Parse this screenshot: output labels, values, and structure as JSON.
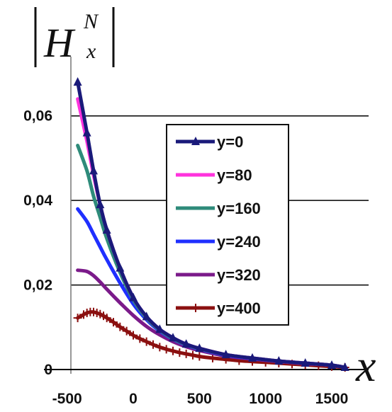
{
  "chart_data": {
    "type": "line",
    "title_main": "H",
    "title_sup": "N",
    "title_sub": "x",
    "xlabel": "x",
    "ylabel": "",
    "xlim": [
      -500,
      1650
    ],
    "ylim": [
      0,
      0.07
    ],
    "x_ticks": [
      "-500",
      "0",
      "500",
      "1000",
      "1500"
    ],
    "y_ticks": [
      "0",
      "0,02",
      "0,04",
      "0,06"
    ],
    "grid": "horizontal",
    "legend_position": "center-right",
    "series": [
      {
        "name": "y=0",
        "color": "#1a1a7a",
        "marker": "triangle",
        "x": [
          -420,
          -350,
          -300,
          -250,
          -200,
          -100,
          0,
          100,
          200,
          300,
          400,
          500,
          700,
          900,
          1100,
          1300,
          1500,
          1600
        ],
        "values": [
          0.068,
          0.056,
          0.047,
          0.039,
          0.033,
          0.024,
          0.017,
          0.0125,
          0.0095,
          0.0075,
          0.006,
          0.005,
          0.0035,
          0.0027,
          0.002,
          0.0015,
          0.001,
          0.0005
        ]
      },
      {
        "name": "y=80",
        "color": "#ff33dd",
        "marker": "none",
        "x": [
          -420,
          -350,
          -300,
          -250,
          -200,
          -100,
          0,
          100,
          200,
          300,
          400,
          500,
          700,
          900,
          1100,
          1300,
          1500,
          1600
        ],
        "values": [
          0.064,
          0.054,
          0.046,
          0.039,
          0.033,
          0.024,
          0.017,
          0.0125,
          0.0095,
          0.0075,
          0.006,
          0.005,
          0.0035,
          0.0027,
          0.002,
          0.0015,
          0.001,
          0.0005
        ]
      },
      {
        "name": "y=160",
        "color": "#2e8b7a",
        "marker": "none",
        "x": [
          -420,
          -350,
          -300,
          -250,
          -200,
          -100,
          0,
          100,
          200,
          300,
          400,
          500,
          700,
          900,
          1100,
          1300,
          1500,
          1600
        ],
        "values": [
          0.053,
          0.047,
          0.041,
          0.036,
          0.031,
          0.023,
          0.0165,
          0.0122,
          0.0093,
          0.0073,
          0.0059,
          0.0049,
          0.0035,
          0.0027,
          0.002,
          0.0015,
          0.001,
          0.0005
        ]
      },
      {
        "name": "y=240",
        "color": "#1f2fff",
        "marker": "none",
        "x": [
          -420,
          -350,
          -300,
          -250,
          -200,
          -100,
          0,
          100,
          200,
          300,
          400,
          500,
          700,
          900,
          1100,
          1300,
          1500,
          1600
        ],
        "values": [
          0.038,
          0.035,
          0.032,
          0.029,
          0.026,
          0.0205,
          0.0155,
          0.0118,
          0.0091,
          0.0072,
          0.0058,
          0.0048,
          0.0034,
          0.0026,
          0.002,
          0.0015,
          0.001,
          0.0005
        ]
      },
      {
        "name": "y=320",
        "color": "#7b1a8a",
        "marker": "none",
        "x": [
          -420,
          -350,
          -300,
          -250,
          -200,
          -100,
          0,
          100,
          200,
          300,
          400,
          500,
          700,
          900,
          1100,
          1300,
          1500,
          1600
        ],
        "values": [
          0.0235,
          0.0232,
          0.0222,
          0.0207,
          0.019,
          0.0158,
          0.0128,
          0.0102,
          0.0082,
          0.0066,
          0.0054,
          0.0045,
          0.0032,
          0.0025,
          0.0019,
          0.0014,
          0.001,
          0.0005
        ]
      },
      {
        "name": "y=400",
        "color": "#8b1010",
        "marker": "plus",
        "x": [
          -420,
          -375,
          -350,
          -325,
          -300,
          -275,
          -250,
          -225,
          -200,
          -150,
          -100,
          -50,
          0,
          50,
          100,
          150,
          200,
          250,
          300,
          350,
          400,
          450,
          500,
          600,
          700,
          800,
          900,
          1000,
          1100,
          1200,
          1300,
          1400,
          1500,
          1600
        ],
        "values": [
          0.0122,
          0.013,
          0.0134,
          0.0136,
          0.0136,
          0.0134,
          0.0131,
          0.0127,
          0.0122,
          0.0112,
          0.0101,
          0.0091,
          0.0081,
          0.0073,
          0.0066,
          0.0059,
          0.0053,
          0.0048,
          0.0044,
          0.004,
          0.0037,
          0.0034,
          0.0031,
          0.0027,
          0.0024,
          0.0021,
          0.0019,
          0.0017,
          0.0015,
          0.0013,
          0.0011,
          0.0009,
          0.0007,
          0.0005
        ]
      }
    ]
  }
}
